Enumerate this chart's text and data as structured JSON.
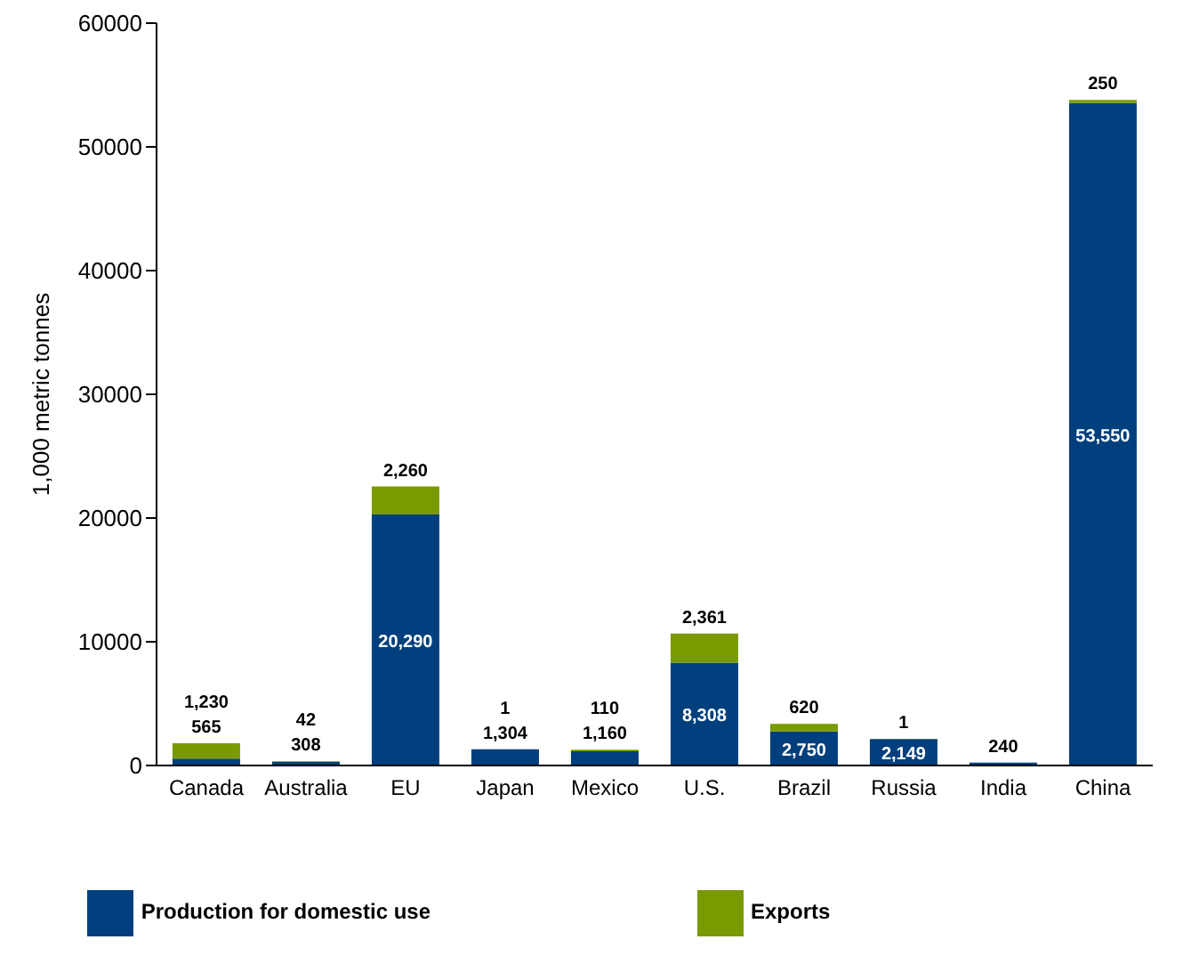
{
  "chart_data": {
    "type": "bar",
    "stacked": true,
    "ylabel": "1,000 metric tonnes",
    "categories": [
      "Canada",
      "Australia",
      "EU",
      "Japan",
      "Mexico",
      "U.S.",
      "Brazil",
      "Russia",
      "India",
      "China"
    ],
    "series": [
      {
        "name": "Production for domestic use",
        "color": "#003f7d",
        "values": [
          565,
          308,
          20290,
          1304,
          1160,
          8308,
          2750,
          2149,
          240,
          53550
        ],
        "value_labels": [
          "565",
          "308",
          "20,290",
          "1,304",
          "1,160",
          "8,308",
          "2,750",
          "2,149",
          "240",
          "53,550"
        ]
      },
      {
        "name": "Exports",
        "color": "#7a9a01",
        "values": [
          1230,
          42,
          2260,
          1,
          110,
          2361,
          620,
          1,
          null,
          250
        ],
        "value_labels": [
          "1,230",
          "42",
          "2,260",
          "1",
          "110",
          "2,361",
          "620",
          "1",
          null,
          "250"
        ]
      }
    ],
    "ylim": [
      0,
      60000
    ],
    "yticks": [
      0,
      10000,
      20000,
      30000,
      40000,
      50000,
      60000
    ],
    "grid": false,
    "legend": "bottom"
  }
}
